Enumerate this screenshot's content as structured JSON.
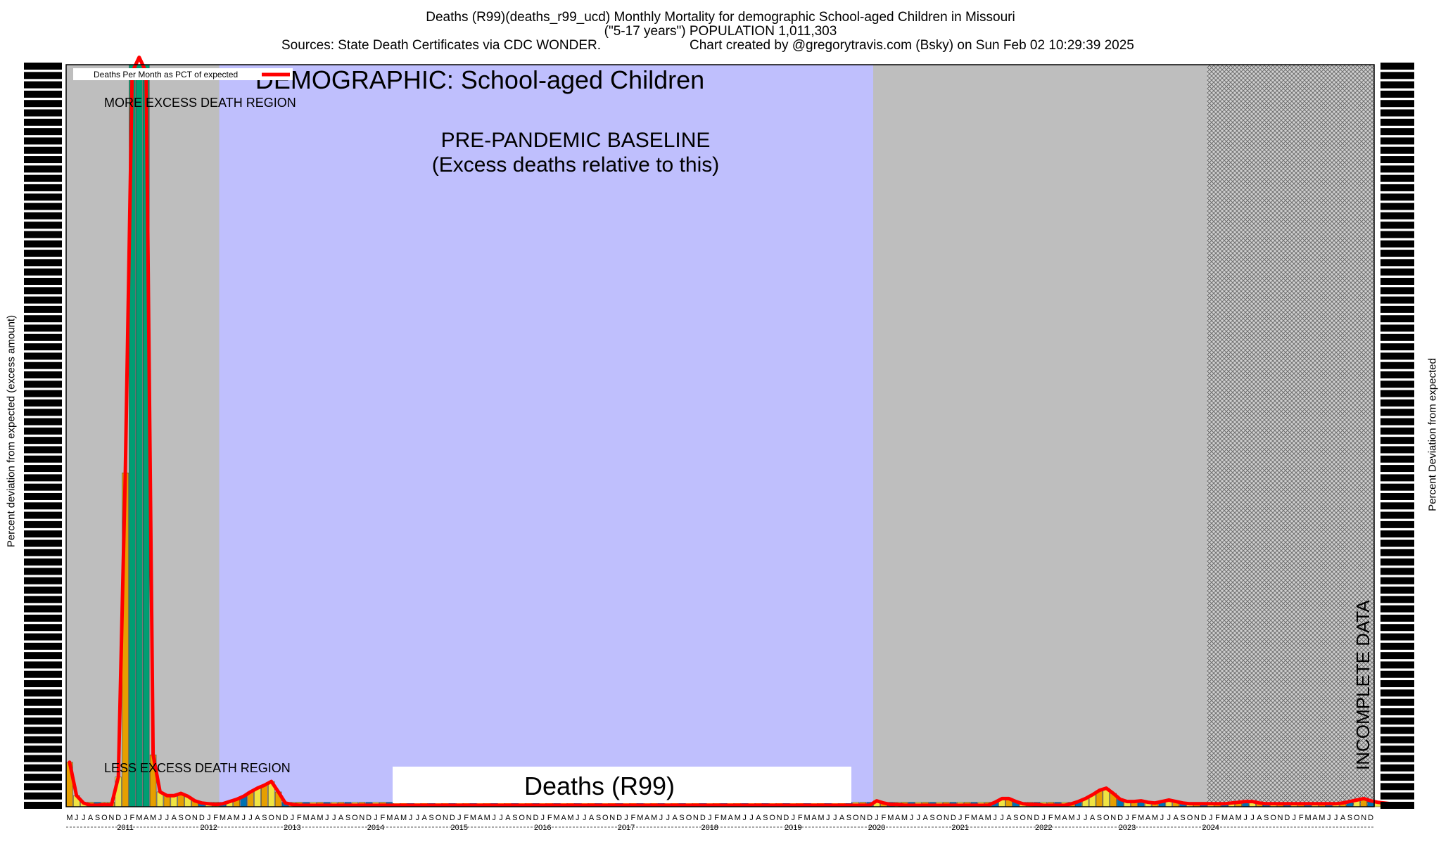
{
  "header": {
    "title_line1": "Deaths (R99)(deaths_r99_ucd) Monthly Mortality for demographic School-aged Children in Missouri",
    "title_line2": "(\"5-17 years\") POPULATION 1,011,303",
    "sources": "Sources: State Death Certificates via CDC WONDER.",
    "created_by": "Chart created by @gregorytravis.com (Bsky) on Sun Feb 02 10:29:39 2025"
  },
  "annotations": {
    "demographic": "DEMOGRAPHIC: School-aged Children",
    "baseline_line1": "PRE-PANDEMIC BASELINE",
    "baseline_line2": "(Excess deaths relative to this)",
    "more_excess": "MORE EXCESS DEATH REGION",
    "less_excess": "LESS EXCESS DEATH REGION",
    "incomplete": "INCOMPLETE DATA",
    "cause_box": "Deaths (R99)"
  },
  "colors": {
    "gray_region": "#bebebe",
    "baseline_region": "#bfbffd",
    "line": "#ff0000",
    "green_bar": "#009e73",
    "orange_bar": "#e69f00",
    "yellow_bar": "#f0e442",
    "blue_bar": "#0072b2",
    "hatch": "#7a7a7a"
  },
  "chart_data": {
    "type": "line",
    "title": "Deaths (R99)(deaths_r99_ucd) Monthly Mortality for demographic School-aged Children in Missouri",
    "ylabel": "Percent deviation from expected (excess amount)",
    "ylabel_right": "Percent Deviation from expected",
    "legend": {
      "label": "Deaths Per Month as PCT of expected",
      "placement": "top-left"
    },
    "x_start": "2010-05",
    "x_end": "2024-12",
    "month_tick_labels": [
      "M",
      "J",
      "J",
      "A",
      "S",
      "O",
      "N",
      "D",
      "J",
      "F",
      "M",
      "A",
      "M",
      "J",
      "J",
      "A",
      "S",
      "O",
      "N",
      "D",
      "J",
      "F",
      "M",
      "A",
      "M",
      "J",
      "J",
      "A",
      "S",
      "O",
      "N",
      "D",
      "J",
      "F",
      "M",
      "A",
      "M",
      "J",
      "J",
      "A",
      "S",
      "O",
      "N",
      "D",
      "J",
      "F",
      "M",
      "A",
      "M",
      "J",
      "J",
      "A",
      "S",
      "O",
      "N",
      "D",
      "J",
      "F",
      "M",
      "A",
      "M",
      "J",
      "J",
      "A",
      "S",
      "O",
      "N",
      "D",
      "J",
      "F",
      "M",
      "A",
      "M",
      "J",
      "J",
      "A",
      "S",
      "O",
      "N",
      "D",
      "J",
      "F",
      "M",
      "A",
      "M",
      "J",
      "J",
      "A",
      "S",
      "O",
      "N",
      "D",
      "J",
      "F",
      "M",
      "A",
      "M",
      "J",
      "J",
      "A",
      "S",
      "O",
      "N",
      "D",
      "J",
      "F",
      "M",
      "A",
      "M",
      "J",
      "J",
      "A",
      "S",
      "O",
      "N",
      "D",
      "J",
      "F",
      "M",
      "A",
      "M",
      "J",
      "J",
      "A",
      "S",
      "O",
      "N",
      "D",
      "J",
      "F",
      "M",
      "A",
      "M",
      "J",
      "J",
      "A",
      "S",
      "O",
      "N",
      "D",
      "J",
      "F",
      "M",
      "A",
      "M",
      "J",
      "J",
      "A",
      "S",
      "O",
      "N",
      "D",
      "J",
      "F",
      "M",
      "A",
      "M",
      "J",
      "J",
      "A",
      "S",
      "O",
      "N",
      "D",
      "J",
      "F",
      "M",
      "A",
      "M",
      "J",
      "J",
      "A",
      "S",
      "O",
      "N",
      "D",
      "J",
      "F",
      "M",
      "A",
      "M",
      "J",
      "J",
      "A",
      "S",
      "O",
      "N",
      "D"
    ],
    "year_labels": [
      "2011",
      "2012",
      "2013",
      "2014",
      "2015",
      "2016",
      "2017",
      "2018",
      "2019",
      "2020",
      "2021",
      "2022",
      "2023",
      "2024"
    ],
    "baseline_period": [
      "2012-03",
      "2019-12"
    ],
    "incomplete_period": [
      "2024-01",
      "2024-12"
    ],
    "series_values": [
      6,
      1.5,
      0.5,
      0.2,
      0.2,
      0.3,
      0.2,
      4,
      45,
      99,
      101,
      99,
      7,
      2,
      1.5,
      1.5,
      1.8,
      1.4,
      0.8,
      0.5,
      0.4,
      0.3,
      0.4,
      0.7,
      1,
      1.4,
      2,
      2.5,
      2.9,
      3.4,
      2,
      0.5,
      0.3,
      0.2,
      0.2,
      0.2,
      0.2,
      0.2,
      0.2,
      0.2,
      0.2,
      0.2,
      0.2,
      0.2,
      0.2,
      0.2,
      0.2,
      0.2,
      0.2,
      0.2,
      0.2,
      0.2,
      0.2,
      0.2,
      0.2,
      0.2,
      0.2,
      0.2,
      0.2,
      0.2,
      0.2,
      0.2,
      0.2,
      0.2,
      0.2,
      0.2,
      0.2,
      0.2,
      0.2,
      0.2,
      0.2,
      0.2,
      0.2,
      0.2,
      0.2,
      0.2,
      0.2,
      0.2,
      0.2,
      0.2,
      0.2,
      0.2,
      0.2,
      0.2,
      0.2,
      0.2,
      0.2,
      0.2,
      0.2,
      0.2,
      0.2,
      0.2,
      0.2,
      0.2,
      0.2,
      0.2,
      0.2,
      0.2,
      0.2,
      0.2,
      0.2,
      0.2,
      0.2,
      0.2,
      0.2,
      0.2,
      0.2,
      0.2,
      0.2,
      0.2,
      0.2,
      0.2,
      0.2,
      0.2,
      0.2,
      0.2,
      0.8,
      0.5,
      0.3,
      0.3,
      0.2,
      0.2,
      0.2,
      0.2,
      0.2,
      0.2,
      0.2,
      0.2,
      0.2,
      0.2,
      0.2,
      0.2,
      0.2,
      0.6,
      1.1,
      1.1,
      0.7,
      0.4,
      0.3,
      0.3,
      0.2,
      0.2,
      0.2,
      0.2,
      0.4,
      0.7,
      1.1,
      1.6,
      2.2,
      2.5,
      1.8,
      1,
      0.7,
      0.7,
      0.8,
      0.6,
      0.5,
      0.7,
      0.9,
      0.7,
      0.5,
      0.4,
      0.4,
      0.4,
      0.4,
      0.4,
      0.4,
      0.5,
      0.6,
      0.7,
      0.7,
      0.5,
      0.4,
      0.4,
      0.4,
      0.4,
      0.4,
      0.4,
      0.4,
      0.4,
      0.4,
      0.4,
      0.4,
      0.5,
      0.7,
      0.9,
      1.1,
      0.8,
      0.6,
      0.5,
      0.4,
      0.4
    ]
  }
}
